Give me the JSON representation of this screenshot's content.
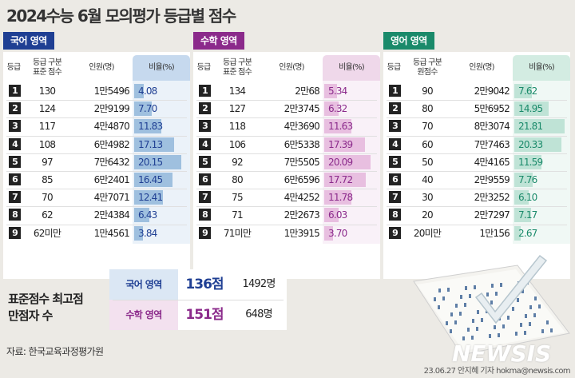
{
  "title": "2024수능 6월 모의평가 등급별 점수",
  "panels": [
    {
      "label": "국어 영역",
      "color": "#1f3f93",
      "bar_color": "#9fc0df",
      "ratio_header_bg": "#c6d9ee",
      "headers": {
        "grade": "등급",
        "score": "등급 구분\n표준 점수",
        "people": "인원(명)",
        "ratio": "비율(%)"
      },
      "rows": [
        {
          "grade": "1",
          "score": "130",
          "people": "1만5496",
          "ratio": "4.08",
          "value": 4.08
        },
        {
          "grade": "2",
          "score": "124",
          "people": "2만9199",
          "ratio": "7.70",
          "value": 7.7
        },
        {
          "grade": "3",
          "score": "117",
          "people": "4만4870",
          "ratio": "11.83",
          "value": 11.83
        },
        {
          "grade": "4",
          "score": "108",
          "people": "6만4982",
          "ratio": "17.13",
          "value": 17.13
        },
        {
          "grade": "5",
          "score": "97",
          "people": "7만6432",
          "ratio": "20.15",
          "value": 20.15
        },
        {
          "grade": "6",
          "score": "85",
          "people": "6만2401",
          "ratio": "16.45",
          "value": 16.45
        },
        {
          "grade": "7",
          "score": "70",
          "people": "4만7071",
          "ratio": "12.41",
          "value": 12.41
        },
        {
          "grade": "8",
          "score": "62",
          "people": "2만4384",
          "ratio": "6.43",
          "value": 6.43
        },
        {
          "grade": "9",
          "score": "62미만",
          "people": "1만4561",
          "ratio": "3.84",
          "value": 3.84
        }
      ]
    },
    {
      "label": "수학 영역",
      "color": "#8b2a8b",
      "bar_color": "#e8bfe0",
      "ratio_header_bg": "#efd8ea",
      "headers": {
        "grade": "등급",
        "score": "등급 구분\n표준 점수",
        "people": "인원(명)",
        "ratio": "비율(%)"
      },
      "rows": [
        {
          "grade": "1",
          "score": "134",
          "people": "2만68",
          "ratio": "5.34",
          "value": 5.34
        },
        {
          "grade": "2",
          "score": "127",
          "people": "2만3745",
          "ratio": "6.32",
          "value": 6.32
        },
        {
          "grade": "3",
          "score": "118",
          "people": "4만3690",
          "ratio": "11.63",
          "value": 11.63
        },
        {
          "grade": "4",
          "score": "106",
          "people": "6만5338",
          "ratio": "17.39",
          "value": 17.39
        },
        {
          "grade": "5",
          "score": "92",
          "people": "7만5505",
          "ratio": "20.09",
          "value": 20.09
        },
        {
          "grade": "6",
          "score": "80",
          "people": "6만6596",
          "ratio": "17.72",
          "value": 17.72
        },
        {
          "grade": "7",
          "score": "75",
          "people": "4만4252",
          "ratio": "11.78",
          "value": 11.78
        },
        {
          "grade": "8",
          "score": "71",
          "people": "2만2673",
          "ratio": "6.03",
          "value": 6.03
        },
        {
          "grade": "9",
          "score": "71미만",
          "people": "1만3915",
          "ratio": "3.70",
          "value": 3.7
        }
      ]
    },
    {
      "label": "영어 영역",
      "color": "#1a8a6a",
      "bar_color": "#bfe3d6",
      "ratio_header_bg": "#d3ece2",
      "headers": {
        "grade": "등급",
        "score": "등급 구분\n원점수",
        "people": "인원(명)",
        "ratio": "비율(%)"
      },
      "rows": [
        {
          "grade": "1",
          "score": "90",
          "people": "2만9042",
          "ratio": "7.62",
          "value": 7.62
        },
        {
          "grade": "2",
          "score": "80",
          "people": "5만6952",
          "ratio": "14.95",
          "value": 14.95
        },
        {
          "grade": "3",
          "score": "70",
          "people": "8만3074",
          "ratio": "21.81",
          "value": 21.81
        },
        {
          "grade": "4",
          "score": "60",
          "people": "7만7463",
          "ratio": "20.33",
          "value": 20.33
        },
        {
          "grade": "5",
          "score": "50",
          "people": "4만4165",
          "ratio": "11.59",
          "value": 11.59
        },
        {
          "grade": "6",
          "score": "40",
          "people": "2만9559",
          "ratio": "7.76",
          "value": 7.76
        },
        {
          "grade": "7",
          "score": "30",
          "people": "2만3252",
          "ratio": "6.10",
          "value": 6.1
        },
        {
          "grade": "8",
          "score": "20",
          "people": "2만7297",
          "ratio": "7.17",
          "value": 7.17
        },
        {
          "grade": "9",
          "score": "20미만",
          "people": "1만156",
          "ratio": "2.67",
          "value": 2.67
        }
      ]
    }
  ],
  "summary": {
    "label_line1": "표준점수 최고점",
    "label_line2": "만점자 수",
    "rows": [
      {
        "subject": "국어 영역",
        "score": "136점",
        "count": "1492명",
        "color": "#1f3f93",
        "bg": "#dbe7f4"
      },
      {
        "subject": "수학 영역",
        "score": "151점",
        "count": "648명",
        "color": "#8b2a8b",
        "bg": "#f3e1ef"
      }
    ]
  },
  "source": "자료: 한국교육과정평가원",
  "credit": "23.06.27 안지혜 기자  hokma@newsis.com",
  "watermark": "NEWSIS",
  "icons": [
    "answer-sheet-icon",
    "check-mark-icon"
  ]
}
